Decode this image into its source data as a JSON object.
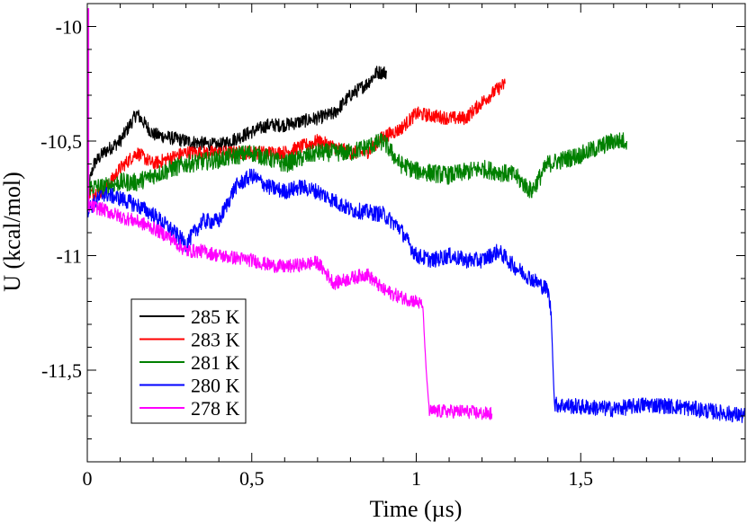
{
  "chart_data": {
    "type": "line",
    "title": "",
    "xlabel": "Time (µs)",
    "ylabel": "U (kcal/mol)",
    "xlim": [
      0,
      2.0
    ],
    "ylim": [
      -11.9,
      -9.9
    ],
    "xticks": [
      0,
      0.5,
      1,
      1.5
    ],
    "xtick_labels": [
      "0",
      "0,5",
      "1",
      "1,5"
    ],
    "yticks": [
      -10,
      -10.5,
      -11,
      -11.5
    ],
    "ytick_labels": [
      "-10",
      "-10,5",
      "-11",
      "-11,5"
    ],
    "grid": false,
    "legend_position": "bottom-left",
    "series": [
      {
        "name": "285 K",
        "color": "#000000",
        "noise": 0.03,
        "x": [
          0.0,
          0.02,
          0.05,
          0.1,
          0.15,
          0.2,
          0.3,
          0.4,
          0.5,
          0.55,
          0.6,
          0.7,
          0.75,
          0.8,
          0.85,
          0.88,
          0.91
        ],
        "values": [
          -10.72,
          -10.6,
          -10.55,
          -10.5,
          -10.38,
          -10.47,
          -10.5,
          -10.52,
          -10.46,
          -10.43,
          -10.43,
          -10.4,
          -10.38,
          -10.3,
          -10.25,
          -10.2,
          -10.2
        ]
      },
      {
        "name": "283 K",
        "color": "#ff0000",
        "noise": 0.03,
        "x": [
          0.0,
          0.05,
          0.1,
          0.15,
          0.2,
          0.3,
          0.4,
          0.5,
          0.6,
          0.7,
          0.8,
          0.85,
          0.9,
          0.95,
          1.0,
          1.1,
          1.15,
          1.2,
          1.25,
          1.27
        ],
        "values": [
          -10.73,
          -10.72,
          -10.62,
          -10.55,
          -10.6,
          -10.55,
          -10.55,
          -10.55,
          -10.55,
          -10.5,
          -10.55,
          -10.55,
          -10.48,
          -10.45,
          -10.38,
          -10.4,
          -10.4,
          -10.33,
          -10.27,
          -10.25
        ]
      },
      {
        "name": "281 K",
        "color": "#008000",
        "noise": 0.04,
        "x": [
          0.0,
          0.05,
          0.1,
          0.15,
          0.2,
          0.3,
          0.4,
          0.5,
          0.6,
          0.7,
          0.8,
          0.9,
          0.95,
          1.0,
          1.1,
          1.2,
          1.3,
          1.35,
          1.4,
          1.5,
          1.6,
          1.64
        ],
        "values": [
          -10.7,
          -10.7,
          -10.68,
          -10.68,
          -10.65,
          -10.6,
          -10.58,
          -10.55,
          -10.6,
          -10.55,
          -10.55,
          -10.5,
          -10.6,
          -10.63,
          -10.65,
          -10.62,
          -10.65,
          -10.72,
          -10.6,
          -10.56,
          -10.5,
          -10.5
        ]
      },
      {
        "name": "280 K",
        "color": "#0000ff",
        "noise": 0.035,
        "x": [
          0.0,
          0.05,
          0.1,
          0.15,
          0.2,
          0.25,
          0.3,
          0.35,
          0.4,
          0.45,
          0.5,
          0.55,
          0.6,
          0.65,
          0.7,
          0.8,
          0.9,
          0.95,
          1.0,
          1.05,
          1.1,
          1.15,
          1.2,
          1.25,
          1.3,
          1.35,
          1.4,
          1.41,
          1.42,
          1.5,
          1.6,
          1.7,
          1.8,
          1.9,
          2.0
        ],
        "values": [
          -10.8,
          -10.73,
          -10.75,
          -10.78,
          -10.82,
          -10.88,
          -10.95,
          -10.85,
          -10.85,
          -10.7,
          -10.65,
          -10.7,
          -10.72,
          -10.7,
          -10.72,
          -10.8,
          -10.82,
          -10.88,
          -11.0,
          -11.02,
          -11.0,
          -11.02,
          -11.02,
          -10.98,
          -11.05,
          -11.1,
          -11.15,
          -11.25,
          -11.65,
          -11.66,
          -11.67,
          -11.65,
          -11.66,
          -11.68,
          -11.7
        ]
      },
      {
        "name": "278 K",
        "color": "#ff00ff",
        "noise": 0.03,
        "x": [
          0.0,
          0.05,
          0.1,
          0.15,
          0.2,
          0.25,
          0.3,
          0.35,
          0.4,
          0.5,
          0.55,
          0.6,
          0.7,
          0.75,
          0.8,
          0.85,
          0.9,
          0.95,
          1.0,
          1.02,
          1.03,
          1.04,
          1.1,
          1.15,
          1.2,
          1.23
        ],
        "values": [
          -10.78,
          -10.8,
          -10.83,
          -10.85,
          -10.88,
          -10.92,
          -10.98,
          -10.98,
          -11.0,
          -11.02,
          -11.04,
          -11.05,
          -11.03,
          -11.12,
          -11.1,
          -11.08,
          -11.15,
          -11.18,
          -11.2,
          -11.22,
          -11.5,
          -11.68,
          -11.68,
          -11.68,
          -11.69,
          -11.69
        ]
      }
    ]
  }
}
